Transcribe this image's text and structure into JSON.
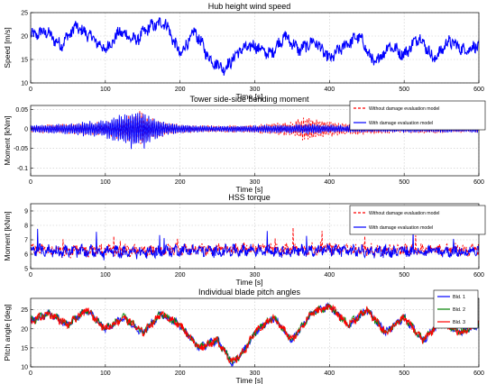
{
  "chart_data": [
    {
      "type": "line",
      "title": "Hub height wind speed",
      "xlabel": "Time [s]",
      "ylabel": "Speed [m/s]",
      "xlim": [
        0,
        600
      ],
      "ylim": [
        10,
        25
      ],
      "xticks": [
        "0",
        "100",
        "200",
        "300",
        "400",
        "500",
        "600"
      ],
      "yticks": [
        "10",
        "15",
        "20",
        "25"
      ],
      "grid": true,
      "legend": null,
      "series": [
        {
          "color": "#0000ff",
          "x": [
            0,
            20,
            40,
            60,
            80,
            100,
            120,
            140,
            160,
            180,
            200,
            220,
            240,
            260,
            280,
            300,
            320,
            340,
            360,
            380,
            400,
            420,
            440,
            460,
            480,
            500,
            520,
            540,
            560,
            580,
            600
          ],
          "y": [
            20,
            21,
            18,
            22,
            20,
            17,
            21,
            19,
            22,
            23,
            16,
            21,
            15,
            13,
            17,
            18,
            16,
            20,
            17,
            19,
            15,
            18,
            20,
            14,
            18,
            16,
            20,
            15,
            19,
            17,
            18
          ]
        }
      ]
    },
    {
      "type": "line",
      "title": "Tower side-side bending moment",
      "xlabel": "Time [s]",
      "ylabel": "Moment [kNm]",
      "xlim": [
        0,
        600
      ],
      "ylim": [
        -0.12,
        0.06
      ],
      "xticks": [
        "0",
        "100",
        "200",
        "300",
        "400",
        "500",
        "600"
      ],
      "yticks": [
        "-0.1",
        "-0.05",
        "0",
        "0.05"
      ],
      "grid": true,
      "legend": "top-right",
      "series": [
        {
          "name": "Without damage evaluation model",
          "color": "#ff0000",
          "style": "dashed",
          "x": [
            0,
            50,
            100,
            120,
            140,
            150,
            160,
            180,
            200,
            250,
            300,
            350,
            370,
            390,
            420,
            450,
            500,
            550,
            600
          ],
          "y": [
            0.01,
            0.015,
            0.02,
            0.03,
            0.045,
            0.05,
            0.03,
            0.02,
            0.012,
            0.01,
            0.012,
            0.02,
            0.035,
            0.025,
            0.018,
            0.015,
            0.012,
            0.012,
            0.01
          ]
        },
        {
          "name": "With damage evaluation model",
          "color": "#0000ff",
          "style": "solid",
          "x": [
            0,
            50,
            100,
            120,
            140,
            150,
            160,
            180,
            200,
            250,
            300,
            350,
            370,
            390,
            420,
            450,
            500,
            550,
            600
          ],
          "y": [
            0.01,
            0.015,
            0.025,
            0.04,
            0.06,
            0.055,
            0.035,
            0.02,
            0.012,
            0.008,
            0.01,
            0.012,
            0.015,
            0.012,
            0.01,
            0.01,
            0.01,
            0.01,
            0.01
          ]
        }
      ]
    },
    {
      "type": "line",
      "title": "HSS torque",
      "xlabel": "Time [s]",
      "ylabel": "Moment [kNm]",
      "xlim": [
        0,
        600
      ],
      "ylim": [
        5,
        9.5
      ],
      "xticks": [
        "0",
        "100",
        "200",
        "300",
        "400",
        "500",
        "600"
      ],
      "yticks": [
        "5",
        "6",
        "7",
        "8",
        "9"
      ],
      "grid": true,
      "legend": "top-right",
      "series": [
        {
          "name": "Without damage evaluation model",
          "color": "#ff0000",
          "style": "dashed",
          "x": [
            0,
            50,
            100,
            150,
            200,
            250,
            300,
            350,
            400,
            450,
            500,
            550,
            600
          ],
          "y": [
            6.3,
            6.2,
            6.3,
            6.2,
            6.3,
            6.3,
            6.4,
            6.3,
            6.4,
            6.3,
            6.3,
            6.3,
            6.3
          ]
        },
        {
          "name": "With damage evaluation model",
          "color": "#0000ff",
          "style": "solid",
          "x": [
            0,
            50,
            100,
            150,
            200,
            250,
            300,
            350,
            400,
            450,
            500,
            550,
            600
          ],
          "y": [
            6.3,
            6.2,
            6.2,
            6.1,
            6.3,
            6.2,
            6.3,
            6.2,
            6.3,
            6.2,
            6.2,
            6.2,
            6.2
          ]
        }
      ]
    },
    {
      "type": "line",
      "title": "Individual blade pitch angles",
      "xlabel": "Time [s]",
      "ylabel": "Pitch angle [deg]",
      "xlim": [
        0,
        600
      ],
      "ylim": [
        10,
        28
      ],
      "xticks": [
        "0",
        "100",
        "200",
        "300",
        "400",
        "500",
        "600"
      ],
      "yticks": [
        "10",
        "15",
        "20",
        "25"
      ],
      "grid": true,
      "legend": "top-right",
      "series": [
        {
          "name": "Bld. 1",
          "color": "#0000ff",
          "x": [
            0,
            25,
            50,
            75,
            100,
            125,
            150,
            175,
            200,
            225,
            250,
            270,
            285,
            300,
            325,
            350,
            375,
            400,
            425,
            450,
            475,
            500,
            525,
            550,
            575,
            600
          ],
          "y": [
            22,
            24,
            21,
            25,
            20,
            23,
            19,
            24,
            21,
            15,
            17,
            11,
            14,
            19,
            23,
            17,
            24,
            26,
            21,
            25,
            19,
            23,
            17,
            22,
            19,
            21
          ]
        },
        {
          "name": "Bld. 2",
          "color": "#008000",
          "x": [
            0,
            25,
            50,
            75,
            100,
            125,
            150,
            175,
            200,
            225,
            250,
            270,
            285,
            300,
            325,
            350,
            375,
            400,
            425,
            450,
            475,
            500,
            525,
            550,
            575,
            600
          ],
          "y": [
            22,
            24,
            21,
            25,
            20,
            23,
            19,
            24,
            21,
            15,
            17,
            11,
            14,
            19,
            23,
            17,
            24,
            26,
            21,
            25,
            19,
            23,
            17,
            22,
            19,
            21
          ]
        },
        {
          "name": "Bld. 3",
          "color": "#ff0000",
          "x": [
            0,
            25,
            50,
            75,
            100,
            125,
            150,
            175,
            200,
            225,
            250,
            270,
            285,
            300,
            325,
            350,
            375,
            400,
            425,
            450,
            475,
            500,
            525,
            550,
            575,
            600
          ],
          "y": [
            22,
            24,
            21,
            25,
            20,
            23,
            19,
            24,
            21,
            15,
            17,
            11,
            14,
            19,
            23,
            17,
            24,
            26,
            21,
            25,
            19,
            23,
            17,
            22,
            19,
            21
          ]
        }
      ]
    }
  ]
}
